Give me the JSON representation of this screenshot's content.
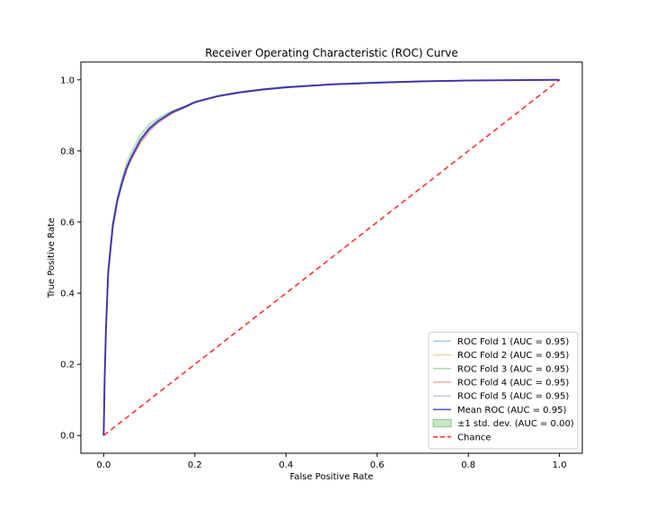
{
  "chart_data": {
    "type": "line",
    "title": "Receiver Operating Characteristic (ROC) Curve",
    "xlabel": "False Positive Rate",
    "ylabel": "True Positive Rate",
    "xlim": [
      -0.05,
      1.05
    ],
    "ylim": [
      -0.05,
      1.05
    ],
    "xticks": [
      0.0,
      0.2,
      0.4,
      0.6,
      0.8,
      1.0
    ],
    "yticks": [
      0.0,
      0.2,
      0.4,
      0.6,
      0.8,
      1.0
    ],
    "tick_labels_x": [
      "0.0",
      "0.2",
      "0.4",
      "0.6",
      "0.8",
      "1.0"
    ],
    "tick_labels_y": [
      "0.0",
      "0.2",
      "0.4",
      "0.6",
      "0.8",
      "1.0"
    ],
    "grid": false,
    "legend_position": "lower-right",
    "series": [
      {
        "name": "ROC Fold 1 (AUC = 0.95)",
        "color": "#1f77b4",
        "style": "solid",
        "alpha": 0.35,
        "x": [
          0,
          0.002,
          0.005,
          0.01,
          0.02,
          0.03,
          0.04,
          0.05,
          0.06,
          0.08,
          0.1,
          0.12,
          0.15,
          0.18,
          0.2,
          0.25,
          0.3,
          0.35,
          0.4,
          0.5,
          0.6,
          0.7,
          0.8,
          0.9,
          1.0
        ],
        "y": [
          0,
          0.15,
          0.3,
          0.46,
          0.59,
          0.66,
          0.71,
          0.75,
          0.78,
          0.83,
          0.865,
          0.885,
          0.91,
          0.925,
          0.938,
          0.955,
          0.966,
          0.974,
          0.98,
          0.988,
          0.993,
          0.996,
          0.998,
          0.999,
          1.0
        ]
      },
      {
        "name": "ROC Fold 2 (AUC = 0.95)",
        "color": "#ff7f0e",
        "style": "solid",
        "alpha": 0.35,
        "x": [
          0,
          0.002,
          0.005,
          0.01,
          0.02,
          0.03,
          0.04,
          0.05,
          0.06,
          0.08,
          0.1,
          0.12,
          0.15,
          0.18,
          0.2,
          0.25,
          0.3,
          0.35,
          0.4,
          0.5,
          0.6,
          0.7,
          0.8,
          0.9,
          1.0
        ],
        "y": [
          0,
          0.14,
          0.29,
          0.45,
          0.58,
          0.655,
          0.705,
          0.745,
          0.775,
          0.825,
          0.86,
          0.882,
          0.907,
          0.924,
          0.937,
          0.954,
          0.965,
          0.973,
          0.979,
          0.987,
          0.992,
          0.996,
          0.998,
          0.999,
          1.0
        ]
      },
      {
        "name": "ROC Fold 3 (AUC = 0.95)",
        "color": "#2ca02c",
        "style": "solid",
        "alpha": 0.35,
        "x": [
          0,
          0.002,
          0.005,
          0.01,
          0.02,
          0.03,
          0.04,
          0.05,
          0.06,
          0.08,
          0.1,
          0.12,
          0.15,
          0.18,
          0.2,
          0.25,
          0.3,
          0.35,
          0.4,
          0.5,
          0.6,
          0.7,
          0.8,
          0.9,
          1.0
        ],
        "y": [
          0,
          0.16,
          0.31,
          0.47,
          0.6,
          0.67,
          0.72,
          0.765,
          0.795,
          0.845,
          0.875,
          0.893,
          0.913,
          0.927,
          0.939,
          0.955,
          0.966,
          0.974,
          0.98,
          0.988,
          0.993,
          0.996,
          0.998,
          0.999,
          1.0
        ]
      },
      {
        "name": "ROC Fold 4 (AUC = 0.95)",
        "color": "#d62728",
        "style": "solid",
        "alpha": 0.35,
        "x": [
          0,
          0.002,
          0.005,
          0.01,
          0.02,
          0.03,
          0.04,
          0.05,
          0.06,
          0.08,
          0.1,
          0.12,
          0.15,
          0.18,
          0.2,
          0.25,
          0.3,
          0.35,
          0.4,
          0.5,
          0.6,
          0.7,
          0.8,
          0.9,
          1.0
        ],
        "y": [
          0,
          0.15,
          0.3,
          0.455,
          0.585,
          0.66,
          0.705,
          0.745,
          0.775,
          0.82,
          0.855,
          0.88,
          0.905,
          0.923,
          0.936,
          0.953,
          0.964,
          0.972,
          0.978,
          0.987,
          0.992,
          0.995,
          0.998,
          0.999,
          1.0
        ]
      },
      {
        "name": "ROC Fold 5 (AUC = 0.95)",
        "color": "#9467bd",
        "style": "solid",
        "alpha": 0.35,
        "x": [
          0,
          0.002,
          0.005,
          0.01,
          0.02,
          0.03,
          0.04,
          0.05,
          0.06,
          0.08,
          0.1,
          0.12,
          0.15,
          0.18,
          0.2,
          0.25,
          0.3,
          0.35,
          0.4,
          0.5,
          0.6,
          0.7,
          0.8,
          0.9,
          1.0
        ],
        "y": [
          0,
          0.15,
          0.3,
          0.46,
          0.59,
          0.66,
          0.71,
          0.75,
          0.78,
          0.83,
          0.86,
          0.883,
          0.908,
          0.925,
          0.937,
          0.954,
          0.965,
          0.973,
          0.979,
          0.987,
          0.992,
          0.996,
          0.998,
          0.999,
          1.0
        ]
      },
      {
        "name": "Mean ROC (AUC = 0.95)",
        "color": "#0000cc",
        "style": "solid",
        "alpha": 0.6,
        "x": [
          0,
          0.002,
          0.005,
          0.01,
          0.02,
          0.03,
          0.04,
          0.05,
          0.06,
          0.08,
          0.1,
          0.12,
          0.15,
          0.18,
          0.2,
          0.25,
          0.3,
          0.35,
          0.4,
          0.5,
          0.6,
          0.7,
          0.8,
          0.9,
          1.0
        ],
        "y": [
          0,
          0.15,
          0.3,
          0.46,
          0.59,
          0.661,
          0.71,
          0.751,
          0.781,
          0.83,
          0.863,
          0.885,
          0.909,
          0.925,
          0.937,
          0.954,
          0.965,
          0.973,
          0.979,
          0.987,
          0.992,
          0.996,
          0.998,
          0.999,
          1.0
        ]
      },
      {
        "name": "Chance",
        "color": "#ff0000",
        "style": "dashed",
        "alpha": 0.8,
        "x": [
          0,
          1
        ],
        "y": [
          0,
          1
        ]
      }
    ],
    "band": {
      "name": "±1 std. dev. (AUC = 0.00)",
      "color": "#2ca02c",
      "alpha": 0.2,
      "x": [
        0,
        0.002,
        0.005,
        0.01,
        0.02,
        0.03,
        0.04,
        0.05,
        0.06,
        0.08,
        0.1,
        0.12,
        0.15,
        0.18,
        0.2,
        0.25,
        0.3,
        0.35,
        0.4,
        0.5,
        0.6,
        0.7,
        0.8,
        0.9,
        1.0
      ],
      "lower": [
        0,
        0.14,
        0.29,
        0.45,
        0.58,
        0.652,
        0.702,
        0.742,
        0.772,
        0.82,
        0.855,
        0.879,
        0.905,
        0.922,
        0.935,
        0.952,
        0.963,
        0.972,
        0.978,
        0.986,
        0.991,
        0.995,
        0.997,
        0.999,
        1.0
      ],
      "upper": [
        0,
        0.16,
        0.31,
        0.47,
        0.6,
        0.67,
        0.718,
        0.76,
        0.79,
        0.84,
        0.871,
        0.891,
        0.913,
        0.928,
        0.939,
        0.956,
        0.967,
        0.975,
        0.981,
        0.989,
        0.994,
        0.997,
        0.999,
        1.0,
        1.0
      ]
    },
    "legend": [
      {
        "label": "ROC Fold 1 (AUC = 0.95)",
        "kind": "line",
        "color": "#1f77b4",
        "alpha": 0.4
      },
      {
        "label": "ROC Fold 2 (AUC = 0.95)",
        "kind": "line",
        "color": "#ff7f0e",
        "alpha": 0.4
      },
      {
        "label": "ROC Fold 3 (AUC = 0.95)",
        "kind": "line",
        "color": "#2ca02c",
        "alpha": 0.4
      },
      {
        "label": "ROC Fold 4 (AUC = 0.95)",
        "kind": "line",
        "color": "#d62728",
        "alpha": 0.4
      },
      {
        "label": "ROC Fold 5 (AUC = 0.95)",
        "kind": "line",
        "color": "#9467bd",
        "alpha": 0.4
      },
      {
        "label": "Mean ROC (AUC = 0.95)",
        "kind": "line",
        "color": "#0000cc",
        "alpha": 0.7
      },
      {
        "label": "±1 std. dev. (AUC = 0.00)",
        "kind": "patch",
        "color": "#2ca02c",
        "alpha": 0.25
      },
      {
        "label": "Chance",
        "kind": "dashed",
        "color": "#ff0000",
        "alpha": 0.8
      }
    ]
  }
}
